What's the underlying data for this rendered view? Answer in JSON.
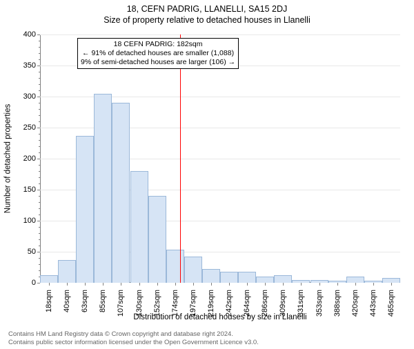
{
  "header": {
    "address": "18, CEFN PADRIG, LLANELLI, SA15 2DJ",
    "subtitle": "Size of property relative to detached houses in Llanelli"
  },
  "chart": {
    "type": "histogram",
    "ylabel": "Number of detached properties",
    "xlabel": "Distribution of detached houses by size in Llanelli",
    "ylim": [
      0,
      400
    ],
    "ytick_step": 50,
    "y_minor_step": 10,
    "background_color": "#ffffff",
    "grid_color": "#e8e8e8",
    "axis_color": "#808080",
    "bar_fill": "#d6e4f5",
    "bar_stroke": "#9bb8d9",
    "bar_width_ratio": 1.0,
    "categories": [
      "18sqm",
      "40sqm",
      "63sqm",
      "85sqm",
      "107sqm",
      "130sqm",
      "152sqm",
      "174sqm",
      "197sqm",
      "219sqm",
      "242sqm",
      "264sqm",
      "286sqm",
      "309sqm",
      "331sqm",
      "353sqm",
      "388sqm",
      "420sqm",
      "443sqm",
      "465sqm"
    ],
    "values": [
      12,
      37,
      237,
      305,
      290,
      180,
      140,
      53,
      42,
      22,
      18,
      18,
      10,
      12,
      5,
      5,
      3,
      10,
      3,
      8
    ],
    "reference_line": {
      "value_sqm": 182,
      "color": "#ff0000",
      "index_position": 7.29
    },
    "annotation": {
      "line1": "18 CEFN PADRIG: 182sqm",
      "line2": "← 91% of detached houses are smaller (1,088)",
      "line3": "9% of semi-detached houses are larger (106) →",
      "border_color": "#000000",
      "bg_color": "#ffffff",
      "fontsize": 10.5
    }
  },
  "footer": {
    "line1": "Contains HM Land Registry data © Crown copyright and database right 2024.",
    "line2": "Contains public sector information licensed under the Open Government Licence v3.0."
  }
}
